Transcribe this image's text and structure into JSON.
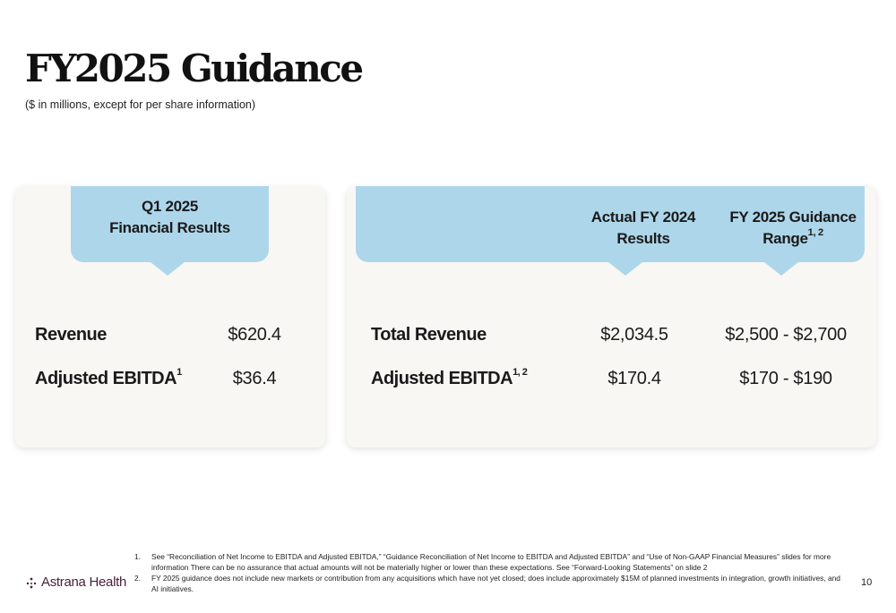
{
  "title": "FY2025 Guidance",
  "subtitle": "($ in millions, except for per share information)",
  "left_card": {
    "header_line1": "Q1 2025",
    "header_line2": "Financial Results",
    "rows": [
      {
        "label": "Revenue",
        "sup": "",
        "value": "$620.4"
      },
      {
        "label": "Adjusted EBITDA",
        "sup": "1",
        "value": "$36.4"
      }
    ]
  },
  "right_card": {
    "col1_header_line1": "Actual FY 2024",
    "col1_header_line2": "Results",
    "col2_header_line1": "FY 2025 Guidance",
    "col2_header_line2": "Range",
    "col2_header_sup": "1, 2",
    "rows": [
      {
        "label": "Total Revenue",
        "sup": "",
        "actual": "$2,034.5",
        "guidance": "$2,500 - $2,700"
      },
      {
        "label": "Adjusted EBITDA",
        "sup": "1, 2",
        "actual": "$170.4",
        "guidance": "$170 - $190"
      }
    ]
  },
  "footer": {
    "logo_text": "Astrana Health",
    "logo_color": "#4a1f3d",
    "page_number": "10",
    "footnotes": [
      {
        "num": "1.",
        "text": "See “Reconciliation of Net Income to EBITDA and Adjusted EBITDA,” “Guidance Reconciliation of Net Income to EBITDA and Adjusted EBITDA” and “Use of Non-GAAP Financial Measures” slides for more information There can be no assurance that actual amounts will not be materially higher or lower than these expectations. See “Forward-Looking Statements” on slide 2"
      },
      {
        "num": "2.",
        "text": "FY 2025 guidance does not include new markets or contribution from any acquisitions which have not yet closed; does include approximately $15M of planned investments in integration, growth initiatives, and AI initiatives."
      }
    ]
  },
  "colors": {
    "banner": "#aed6ea",
    "card_bg": "#f9f7f3"
  }
}
